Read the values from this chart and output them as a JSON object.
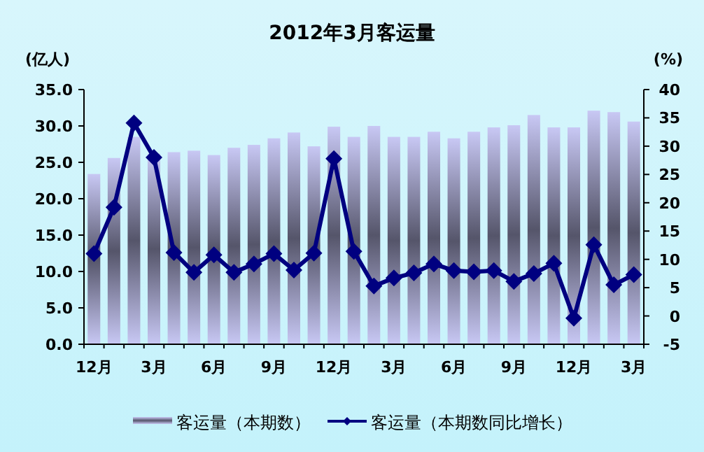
{
  "chart_data": {
    "type": "bar",
    "title": "2012年3月客运量",
    "ylabel": "(亿人)",
    "y2label": "(%)",
    "categories": [
      "12月",
      null,
      null,
      "3月",
      null,
      null,
      "6月",
      null,
      null,
      "9月",
      null,
      null,
      "12月",
      null,
      null,
      "3月",
      null,
      null,
      "6月",
      null,
      null,
      "9月",
      null,
      null,
      "12月",
      null,
      null,
      "3月"
    ],
    "series": [
      {
        "name": "客运量（本期数）",
        "color": "#c8c8f4",
        "values": [
          23.4,
          25.6,
          28.5,
          26.2,
          26.4,
          26.6,
          26.0,
          27.0,
          27.4,
          28.3,
          29.1,
          27.2,
          29.9,
          28.5,
          30.0,
          28.5,
          28.5,
          29.2,
          28.3,
          29.2,
          29.8,
          30.1,
          31.5,
          29.8,
          29.8,
          32.1,
          31.9,
          30.6
        ]
      },
      {
        "name": "客运量（本期数同比增长）",
        "type": "line",
        "axis": "y2",
        "color": "#000080",
        "marker": "diamond",
        "values": [
          11.0,
          19.2,
          34.1,
          28.0,
          11.2,
          7.7,
          10.8,
          7.7,
          9.2,
          11.0,
          8.1,
          11.1,
          27.8,
          11.4,
          5.3,
          6.7,
          7.6,
          9.2,
          8.0,
          7.8,
          8.0,
          6.1,
          7.5,
          9.3,
          -0.4,
          12.6,
          5.5,
          7.3
        ]
      }
    ],
    "ylim": [
      0,
      35
    ],
    "yticks": [
      {
        "value": 0,
        "label": "0.0"
      },
      {
        "value": 5,
        "label": "5.0"
      },
      {
        "value": 10,
        "label": "10.0"
      },
      {
        "value": 15,
        "label": "15.0"
      },
      {
        "value": 20,
        "label": "20.0"
      },
      {
        "value": 25,
        "label": "25.0"
      },
      {
        "value": 30,
        "label": "30.0"
      },
      {
        "value": 35,
        "label": "35.0"
      }
    ],
    "y2lim": [
      -5,
      40
    ],
    "y2ticks": [
      -5,
      0,
      5,
      10,
      15,
      20,
      25,
      30,
      35,
      40
    ],
    "legend": "bottom",
    "grid": false
  }
}
